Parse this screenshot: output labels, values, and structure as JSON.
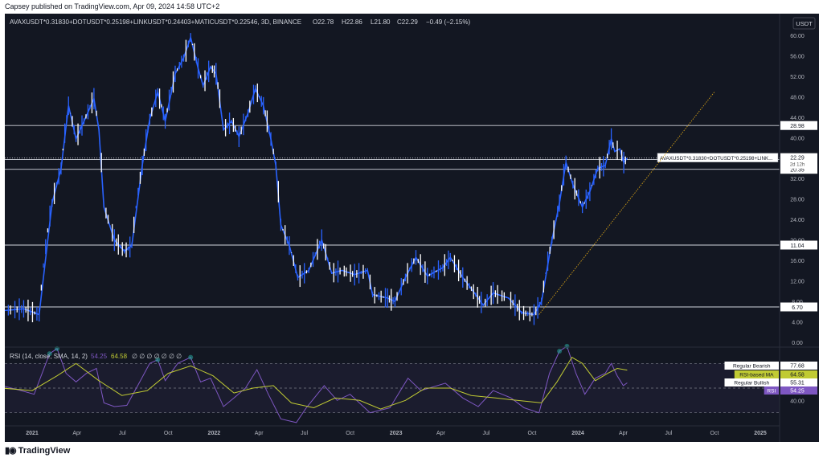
{
  "header": {
    "publisher": "Capsey published on TradingView.com, Apr 09, 2024 14:58 UTC+2"
  },
  "legend": {
    "symbol": "AVAXUSDT*0.31830+DOTUSDT*0.25198+LINKUSDT*0.24403+MATICUSDT*0.22546, 3D, BINANCE",
    "open": "O22.78",
    "high": "H22.86",
    "low": "L21.80",
    "close": "C22.29",
    "change": "−0.49 (−2.15%)"
  },
  "rsi_legend": {
    "label": "RSI (14, close, SMA, 14, 2)",
    "rsi": "54.25",
    "ma": "64.58",
    "extra": "∅ ∅ ∅ ∅ ∅ ∅ ∅"
  },
  "currency_button": "USDT",
  "footer": {
    "brand": "TradingView"
  },
  "colors": {
    "background": "#131722",
    "candle_up": "#2962ff",
    "candle_down": "#ffffff",
    "rsi": "#7e57c2",
    "rsi_ma": "#c0ca33",
    "trendline": "#d4a017"
  },
  "chart_data": {
    "type": "line",
    "price_axis": {
      "ticks": [
        "60.00",
        "56.00",
        "52.00",
        "48.00",
        "44.00",
        "40.00",
        "36.00",
        "32.00",
        "28.00",
        "24.00",
        "20.00",
        "16.00",
        "12.00",
        "8.00",
        "4.00",
        "0.00"
      ],
      "scale": "log"
    },
    "time_axis": {
      "labels": [
        {
          "t": "2021-01-01",
          "label": "2021"
        },
        {
          "t": "2021-04-01",
          "label": "Apr"
        },
        {
          "t": "2021-07-01",
          "label": "Jul"
        },
        {
          "t": "2021-10-01",
          "label": "Oct"
        },
        {
          "t": "2022-01-01",
          "label": "2022"
        },
        {
          "t": "2022-04-01",
          "label": "Apr"
        },
        {
          "t": "2022-07-01",
          "label": "Jul"
        },
        {
          "t": "2022-10-01",
          "label": "Oct"
        },
        {
          "t": "2023-01-01",
          "label": "2023"
        },
        {
          "t": "2023-04-01",
          "label": "Apr"
        },
        {
          "t": "2023-07-01",
          "label": "Jul"
        },
        {
          "t": "2023-10-01",
          "label": "Oct"
        },
        {
          "t": "2024-01-01",
          "label": "2024"
        },
        {
          "t": "2024-04-01",
          "label": "Apr"
        },
        {
          "t": "2024-07-01",
          "label": "Jul"
        },
        {
          "t": "2024-10-01",
          "label": "Oct"
        },
        {
          "t": "2025-01-01",
          "label": "2025"
        }
      ]
    },
    "series": [
      {
        "points": [
          [
            "2020-11-01",
            6.5
          ],
          [
            "2020-12-15",
            6.6
          ],
          [
            "2021-01-15",
            6.3
          ],
          [
            "2021-02-10",
            15.5
          ],
          [
            "2021-02-28",
            20.5
          ],
          [
            "2021-03-15",
            34.0
          ],
          [
            "2021-03-30",
            26.0
          ],
          [
            "2021-04-15",
            30.0
          ],
          [
            "2021-05-05",
            36.0
          ],
          [
            "2021-05-15",
            28.0
          ],
          [
            "2021-05-25",
            15.0
          ],
          [
            "2021-06-15",
            11.5
          ],
          [
            "2021-07-05",
            10.5
          ],
          [
            "2021-07-20",
            11.0
          ],
          [
            "2021-08-10",
            21.0
          ],
          [
            "2021-08-25",
            30.5
          ],
          [
            "2021-09-10",
            38.0
          ],
          [
            "2021-09-25",
            30.0
          ],
          [
            "2021-10-15",
            44.0
          ],
          [
            "2021-11-01",
            50.0
          ],
          [
            "2021-11-15",
            59.0
          ],
          [
            "2021-11-30",
            46.0
          ],
          [
            "2021-12-10",
            40.0
          ],
          [
            "2021-12-25",
            46.5
          ],
          [
            "2022-01-05",
            44.0
          ],
          [
            "2022-01-20",
            28.0
          ],
          [
            "2022-02-05",
            30.0
          ],
          [
            "2022-02-20",
            26.5
          ],
          [
            "2022-03-10",
            32.0
          ],
          [
            "2022-03-25",
            39.0
          ],
          [
            "2022-04-10",
            34.0
          ],
          [
            "2022-04-25",
            26.0
          ],
          [
            "2022-05-05",
            21.0
          ],
          [
            "2022-05-15",
            13.0
          ],
          [
            "2022-06-01",
            11.0
          ],
          [
            "2022-06-18",
            8.5
          ],
          [
            "2022-07-10",
            9.0
          ],
          [
            "2022-08-05",
            11.5
          ],
          [
            "2022-08-25",
            8.8
          ],
          [
            "2022-09-15",
            9.0
          ],
          [
            "2022-10-10",
            8.7
          ],
          [
            "2022-11-05",
            9.0
          ],
          [
            "2022-11-15",
            7.4
          ],
          [
            "2022-12-15",
            7.2
          ],
          [
            "2022-12-30",
            7.0
          ],
          [
            "2023-01-20",
            8.5
          ],
          [
            "2023-02-10",
            10.0
          ],
          [
            "2023-03-05",
            8.6
          ],
          [
            "2023-04-05",
            9.2
          ],
          [
            "2023-04-20",
            10.0
          ],
          [
            "2023-05-15",
            8.5
          ],
          [
            "2023-06-10",
            7.4
          ],
          [
            "2023-06-25",
            6.8
          ],
          [
            "2023-07-15",
            7.5
          ],
          [
            "2023-08-15",
            7.2
          ],
          [
            "2023-09-10",
            6.4
          ],
          [
            "2023-10-05",
            6.3
          ],
          [
            "2023-10-20",
            7.0
          ],
          [
            "2023-11-10",
            11.5
          ],
          [
            "2023-11-25",
            15.5
          ],
          [
            "2023-12-08",
            21.5
          ],
          [
            "2023-12-22",
            18.0
          ],
          [
            "2024-01-10",
            15.0
          ],
          [
            "2024-01-25",
            17.0
          ],
          [
            "2024-02-10",
            20.5
          ],
          [
            "2024-02-25",
            21.0
          ],
          [
            "2024-03-08",
            26.0
          ],
          [
            "2024-03-15",
            23.5
          ],
          [
            "2024-03-25",
            24.0
          ],
          [
            "2024-04-02",
            21.5
          ],
          [
            "2024-04-09",
            22.29
          ]
        ]
      }
    ],
    "levels": [
      {
        "value": 28.98,
        "label": "28.98"
      },
      {
        "value": 22.04,
        "label": "22.04"
      },
      {
        "value": 20.35,
        "label": "20.35"
      },
      {
        "value": 11.04,
        "label": "11.04"
      },
      {
        "value": 6.7,
        "label": "6.70"
      }
    ],
    "last_price": {
      "value": 22.29,
      "label": "22.29",
      "countdown": "2d 12h",
      "tag": "AVAXUSDT*0.31830+DOTUSDT*0.25198+LINK..."
    },
    "trendline": {
      "from": [
        "2023-10-15",
        6.3
      ],
      "to": [
        "2024-10-01",
        38.0
      ]
    },
    "rsi": {
      "axis_ticks": [
        "40.00"
      ],
      "levels": [
        70,
        50,
        30
      ],
      "markers": [
        {
          "label": "Regular Bearish",
          "value": "77.68"
        },
        {
          "label": "RSI-based MA",
          "value": "64.58"
        },
        {
          "label": "Regular Bullish",
          "value": "55.31"
        },
        {
          "label": "RSI",
          "value": "54.25"
        }
      ],
      "values": [
        [
          "2020-11-01",
          52
        ],
        [
          "2020-12-10",
          48
        ],
        [
          "2021-01-05",
          45
        ],
        [
          "2021-02-05",
          78
        ],
        [
          "2021-02-20",
          82
        ],
        [
          "2021-03-10",
          62
        ],
        [
          "2021-03-30",
          55
        ],
        [
          "2021-04-20",
          62
        ],
        [
          "2021-05-10",
          66
        ],
        [
          "2021-05-25",
          38
        ],
        [
          "2021-06-15",
          35
        ],
        [
          "2021-07-10",
          36
        ],
        [
          "2021-08-05",
          55
        ],
        [
          "2021-08-25",
          70
        ],
        [
          "2021-09-10",
          73
        ],
        [
          "2021-09-25",
          56
        ],
        [
          "2021-10-20",
          70
        ],
        [
          "2021-11-15",
          75
        ],
        [
          "2021-12-05",
          55
        ],
        [
          "2021-12-25",
          58
        ],
        [
          "2022-01-20",
          35
        ],
        [
          "2022-02-10",
          42
        ],
        [
          "2022-03-05",
          50
        ],
        [
          "2022-03-28",
          65
        ],
        [
          "2022-04-20",
          45
        ],
        [
          "2022-05-15",
          25
        ],
        [
          "2022-06-15",
          22
        ],
        [
          "2022-07-05",
          34
        ],
        [
          "2022-08-10",
          52
        ],
        [
          "2022-09-05",
          40
        ],
        [
          "2022-10-01",
          45
        ],
        [
          "2022-11-10",
          30
        ],
        [
          "2022-12-20",
          34
        ],
        [
          "2023-01-25",
          58
        ],
        [
          "2023-02-20",
          48
        ],
        [
          "2023-04-10",
          54
        ],
        [
          "2023-05-15",
          42
        ],
        [
          "2023-06-15",
          35
        ],
        [
          "2023-07-15",
          48
        ],
        [
          "2023-08-20",
          42
        ],
        [
          "2023-09-15",
          34
        ],
        [
          "2023-10-15",
          30
        ],
        [
          "2023-11-05",
          62
        ],
        [
          "2023-11-25",
          80
        ],
        [
          "2023-12-10",
          84
        ],
        [
          "2023-12-28",
          62
        ],
        [
          "2024-01-15",
          45
        ],
        [
          "2024-02-05",
          58
        ],
        [
          "2024-02-25",
          62
        ],
        [
          "2024-03-08",
          70
        ],
        [
          "2024-03-20",
          60
        ],
        [
          "2024-04-01",
          52
        ],
        [
          "2024-04-09",
          54.25
        ]
      ],
      "ma": [
        [
          "2020-11-01",
          50
        ],
        [
          "2021-01-01",
          48
        ],
        [
          "2021-02-20",
          60
        ],
        [
          "2021-03-30",
          70
        ],
        [
          "2021-05-15",
          56
        ],
        [
          "2021-06-30",
          44
        ],
        [
          "2021-08-20",
          48
        ],
        [
          "2021-10-01",
          62
        ],
        [
          "2021-11-15",
          68
        ],
        [
          "2021-12-30",
          60
        ],
        [
          "2022-02-10",
          46
        ],
        [
          "2022-03-20",
          50
        ],
        [
          "2022-04-30",
          52
        ],
        [
          "2022-06-05",
          38
        ],
        [
          "2022-07-20",
          34
        ],
        [
          "2022-09-01",
          42
        ],
        [
          "2022-10-20",
          40
        ],
        [
          "2022-12-01",
          33
        ],
        [
          "2023-01-20",
          40
        ],
        [
          "2023-03-01",
          50
        ],
        [
          "2023-04-20",
          50
        ],
        [
          "2023-06-01",
          44
        ],
        [
          "2023-07-20",
          42
        ],
        [
          "2023-09-01",
          40
        ],
        [
          "2023-10-20",
          38
        ],
        [
          "2023-11-20",
          55
        ],
        [
          "2023-12-20",
          75
        ],
        [
          "2024-01-10",
          70
        ],
        [
          "2024-02-05",
          56
        ],
        [
          "2024-03-01",
          62
        ],
        [
          "2024-03-20",
          66
        ],
        [
          "2024-04-09",
          64.58
        ]
      ]
    }
  }
}
